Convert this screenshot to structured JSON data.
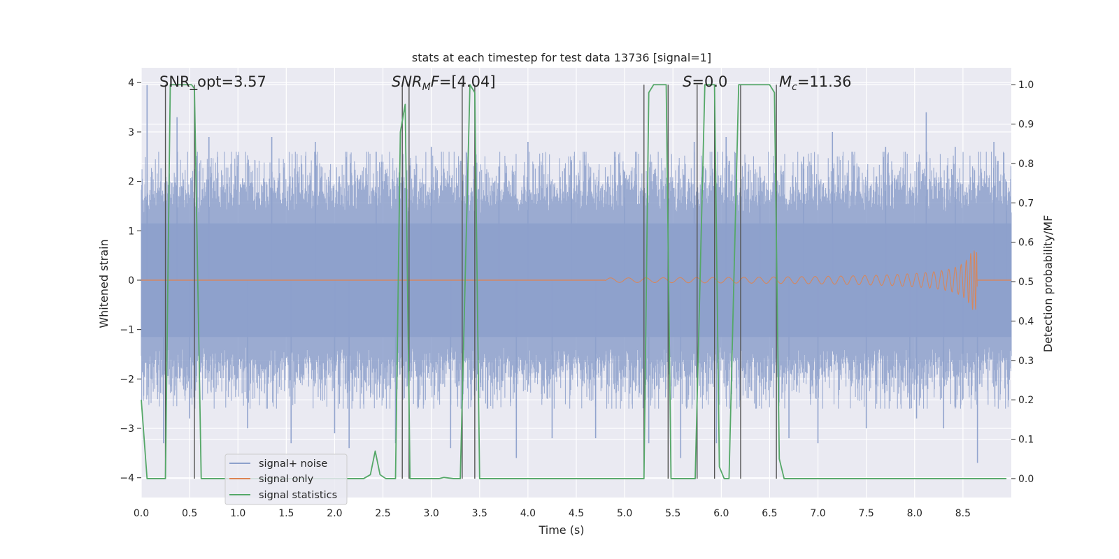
{
  "chart_data": {
    "type": "line",
    "title": "stats at each timestep for test data 13736 [signal=1]",
    "xlabel": "Time (s)",
    "ylabel_left": "Whitened strain",
    "ylabel_right": "Detection probability/MF",
    "xlim": [
      0,
      9
    ],
    "ylim_left": [
      -4.4,
      4.3
    ],
    "ylim_right": [
      -0.048,
      1.043
    ],
    "grid": true,
    "legend_placement": "lower-left",
    "x_ticks": [
      "0.0",
      "0.5",
      "1.0",
      "1.5",
      "2.0",
      "2.5",
      "3.0",
      "3.5",
      "4.0",
      "4.5",
      "5.0",
      "5.5",
      "6.0",
      "6.5",
      "7.0",
      "7.5",
      "8.0",
      "8.5"
    ],
    "y_left_ticks": [
      "−4",
      "−3",
      "−2",
      "−1",
      "0",
      "1",
      "2",
      "3",
      "4"
    ],
    "y_right_ticks": [
      "0.0",
      "0.1",
      "0.2",
      "0.3",
      "0.4",
      "0.5",
      "0.6",
      "0.7",
      "0.8",
      "0.9",
      "1.0"
    ],
    "annotations": {
      "snr_opt_prefix": "SNR_opt=",
      "snr_opt_value": "3.57",
      "snr_mf_italic": "SNR",
      "snr_mf_sub": "M",
      "snr_mf_italic2": "F",
      "snr_mf_value": "=[4.04]",
      "s_italic": "S",
      "s_value": "=0.0",
      "mc_italic": "M",
      "mc_sub": "c",
      "mc_value": "=11.36"
    },
    "series": [
      {
        "name": "signal+ noise",
        "color": "#8da0cb",
        "style": "noise band",
        "envelope_typical": [
          -2.3,
          2.3
        ],
        "envelope_peaks": [
          [
            0.06,
            3.95
          ],
          [
            0.23,
            -3.3
          ],
          [
            0.37,
            3.3
          ],
          [
            0.5,
            -2.8
          ],
          [
            0.7,
            2.9
          ],
          [
            1.1,
            -3.0
          ],
          [
            1.35,
            2.9
          ],
          [
            1.55,
            -3.3
          ],
          [
            1.8,
            2.8
          ],
          [
            2.0,
            -3.1
          ],
          [
            2.15,
            -3.4
          ],
          [
            2.43,
            2.6
          ],
          [
            2.63,
            -3.3
          ],
          [
            3.0,
            2.7
          ],
          [
            3.2,
            -3.4
          ],
          [
            3.38,
            2.5
          ],
          [
            3.7,
            2.3
          ],
          [
            3.88,
            -3.6
          ],
          [
            4.0,
            2.8
          ],
          [
            4.25,
            -3.2
          ],
          [
            4.45,
            2.4
          ],
          [
            4.7,
            -3.2
          ],
          [
            5.0,
            2.2
          ],
          [
            5.25,
            -3.3
          ],
          [
            5.45,
            2.2
          ],
          [
            5.58,
            -3.6
          ],
          [
            5.72,
            2.8
          ],
          [
            5.95,
            -3.3
          ],
          [
            6.05,
            2.9
          ],
          [
            6.4,
            2.3
          ],
          [
            6.7,
            -3.2
          ],
          [
            6.85,
            2.5
          ],
          [
            7.0,
            -3.3
          ],
          [
            7.15,
            3.0
          ],
          [
            7.5,
            -3.0
          ],
          [
            7.7,
            2.7
          ],
          [
            7.95,
            -2.6
          ],
          [
            8.02,
            -2.8
          ],
          [
            8.12,
            3.4
          ],
          [
            8.3,
            -3.0
          ],
          [
            8.42,
            2.7
          ],
          [
            8.5,
            -2.4
          ],
          [
            8.65,
            -3.7
          ],
          [
            8.82,
            2.8
          ],
          [
            8.95,
            2.0
          ]
        ]
      },
      {
        "name": "signal only",
        "color": "#dd8452",
        "style": "chirp",
        "x_start": 4.8,
        "x_merger": 8.65,
        "peak_amplitude": 0.6
      },
      {
        "name": "signal statistics",
        "color": "#55a868",
        "axis": "right",
        "x": [
          0.0,
          0.06,
          0.25,
          0.3,
          0.52,
          0.55,
          0.62,
          2.3,
          2.37,
          2.42,
          2.47,
          2.53,
          2.58,
          2.63,
          2.68,
          2.73,
          2.78,
          2.93,
          3.03,
          3.08,
          3.13,
          3.23,
          3.3,
          3.35,
          3.4,
          3.45,
          3.5,
          4.95,
          5.2,
          5.25,
          5.3,
          5.43,
          5.48,
          5.73,
          5.78,
          5.83,
          5.93,
          5.98,
          6.03,
          6.08,
          6.13,
          6.18,
          6.23,
          6.5,
          6.55,
          6.6,
          6.65,
          6.7,
          8.95
        ],
        "values": [
          0.2,
          0.0,
          0.0,
          1.0,
          1.0,
          0.99,
          0.0,
          0.0,
          0.01,
          0.07,
          0.01,
          0.0,
          0.0,
          0.0,
          0.88,
          0.95,
          0.0,
          0.0,
          0.0,
          0.0,
          0.003,
          0.0,
          0.0,
          0.5,
          1.0,
          0.98,
          0.0,
          0.0,
          0.0,
          0.98,
          1.0,
          1.0,
          0.0,
          0.0,
          0.5,
          1.0,
          1.0,
          0.03,
          0.0,
          0.0,
          0.5,
          1.0,
          1.0,
          1.0,
          0.98,
          0.05,
          0.0,
          0.0,
          0.0
        ]
      }
    ],
    "vertical_markers": [
      0.25,
      0.55,
      2.7,
      2.77,
      3.32,
      3.45,
      5.2,
      5.45,
      5.75,
      5.93,
      6.2,
      6.57
    ]
  }
}
